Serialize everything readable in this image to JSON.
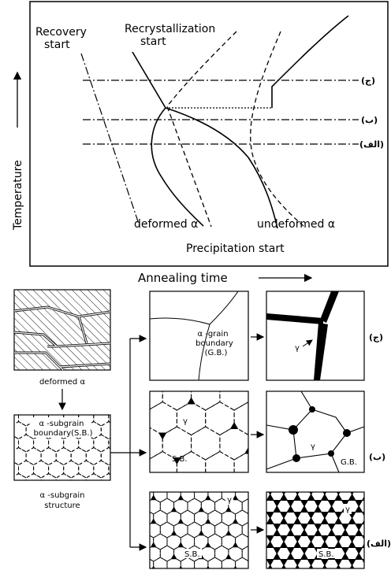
{
  "graph": {
    "y_axis_label": "Temperature",
    "x_axis_label": "Annealing time",
    "recovery_label": [
      "Recovery",
      "start"
    ],
    "recrystallization_label": [
      "Recrystallization",
      "start"
    ],
    "levels": [
      "(ج)",
      "(ب)",
      "(الف)"
    ],
    "deformed_label": "deformed α",
    "undeformed_label": "undeformed α",
    "precipitation_label": "Precipitation start"
  },
  "microstructure": {
    "deformed": {
      "caption": "deformed α"
    },
    "subgrain": {
      "inner_label": [
        "α -subgrain",
        "boundary(S.B.)"
      ],
      "caption": [
        "α -subgrain",
        "structure"
      ]
    },
    "rows": [
      {
        "level": "(ج)",
        "panel1": {
          "labels": [
            "α -grain",
            "boundary",
            "(G.B.)"
          ]
        },
        "panel2": {
          "labels": [
            "γ"
          ]
        }
      },
      {
        "level": "(ب)",
        "panel1": {
          "labels": [
            "γ",
            "S.B."
          ]
        },
        "panel2": {
          "labels": [
            "γ",
            "G.B."
          ]
        }
      },
      {
        "level": "(الف)",
        "panel1": {
          "labels": [
            "γ",
            "S.B."
          ]
        },
        "panel2": {
          "labels": [
            "γ",
            "S.B."
          ]
        }
      }
    ]
  }
}
